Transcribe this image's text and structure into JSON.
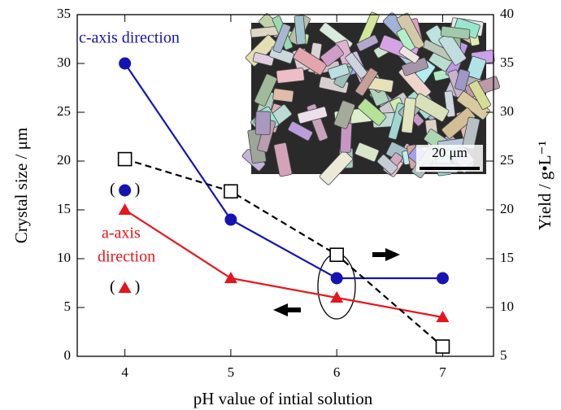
{
  "chart_data": {
    "type": "line",
    "x": [
      4,
      5,
      6,
      7
    ],
    "xlim": [
      3.55,
      7.48
    ],
    "xticks": [
      4,
      5,
      6,
      7
    ],
    "ylim": [
      0,
      35
    ],
    "yticks": [
      0,
      5,
      10,
      15,
      20,
      25,
      30,
      35
    ],
    "y2lim": [
      5,
      40
    ],
    "y2ticks": [
      5,
      10,
      15,
      20,
      25,
      30,
      35,
      40
    ],
    "xlabel": "pH value of intial solution",
    "ylabel": "Crystal size / μm",
    "y2label": "Yield / g•L⁻¹",
    "series": [
      {
        "color": "#1414b4",
        "marker": "circle",
        "values": [
          30,
          14,
          8,
          8
        ]
      },
      {
        "color": "#e8141c",
        "marker": "triangle",
        "values": [
          15,
          8,
          6,
          4
        ]
      },
      {
        "color": "#000000",
        "marker": "square",
        "dashed": true,
        "axis": "y2",
        "values": [
          25.2,
          21.9,
          15.4,
          6.0
        ]
      },
      {
        "color": "#1414b4",
        "marker": "circle",
        "line": false,
        "brackets": [
          "(",
          ")"
        ],
        "values": [
          17,
          null,
          null,
          null
        ]
      },
      {
        "color": "#e8141c",
        "marker": "triangle",
        "line": false,
        "brackets": [
          "(",
          ")"
        ],
        "values": [
          7,
          null,
          null,
          null
        ]
      }
    ],
    "annotations": [
      {
        "text": "c-axis direction",
        "color": "#1414b4"
      },
      {
        "text": "a-axis",
        "color": "#e8141c"
      },
      {
        "text": "direction",
        "color": "#e8141c"
      },
      {
        "text": "20 μm",
        "color": "#000000"
      }
    ]
  }
}
